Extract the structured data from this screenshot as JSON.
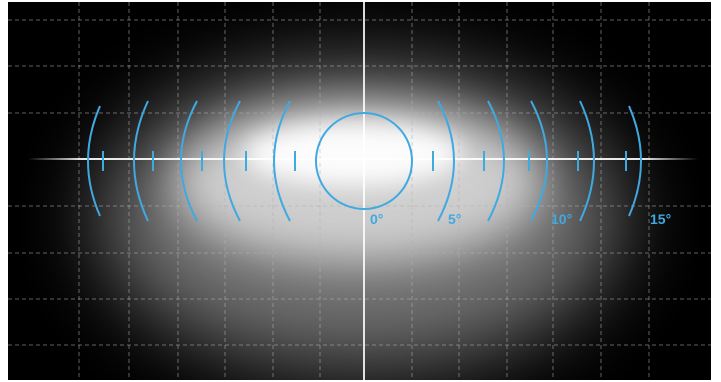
{
  "scale": {
    "unit": "°",
    "labels": [
      "0°",
      "5°",
      "10°",
      "15°"
    ],
    "marks": [
      0,
      5,
      10,
      15
    ]
  },
  "colors": {
    "background": "#000000",
    "beam": "#ffffff",
    "scale_overlay": "#3fa9e0",
    "grid": "#9a9a9a",
    "crosshair": "#ffffff"
  }
}
